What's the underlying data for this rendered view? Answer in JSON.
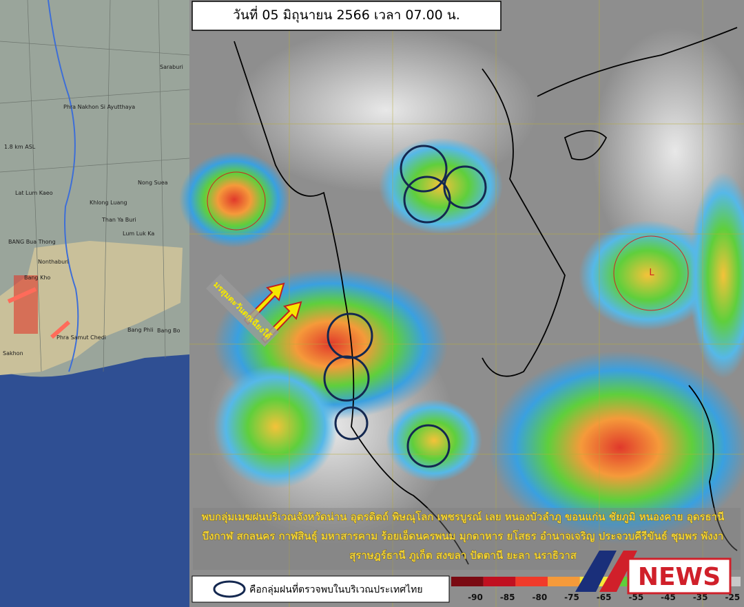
{
  "header": {
    "title": "วันที่ 05 มิถุนายน 2566 เวลา 07.00 น."
  },
  "radar_map": {
    "altitude": "1.8 km ASL",
    "places": [
      "Saraburi",
      "Phra Nakhon Si Ayutthaya",
      "Nong Suea",
      "Khlong Luang",
      "Lat Lum Kaeo",
      "Than Ya Buri",
      "Lum Luk Ka",
      "BANG Bua Thong",
      "Nonthaburi",
      "Bang Kho",
      "Bang Phli",
      "Bang Bo",
      "Phra Samut Chedi",
      "Sakhon"
    ]
  },
  "satellite": {
    "monsoon_label": "มรสุมตะวันตกเฉียงใต้",
    "low_label": "L"
  },
  "caption": {
    "lines": [
      "พบกลุ่มเมฆฝนบริเวณจังหวัดน่าน อุตรดิตถ์ พิษณุโลก เพชรบูรณ์ เลย หนองบัวลำภู ขอนแก่น ชัยภูมิ หนองคาย อุดรธานี",
      "บึงกาฬ สกลนคร กาฬสินธุ์ มหาสารคาม ร้อยเอ็ดนครพนม มุกดาหาร ยโสธร อำนาจเจริญ ประจวบคีรีขันธ์ ชุมพร พังงา",
      "สุราษฎร์ธานี ภูเก็ต สงขลา ปัตตานี ยะลา นราธิวาส"
    ]
  },
  "legend": {
    "text": "คือกลุ่มฝนที่ตรวจพบในบริเวณประเทศไทย",
    "scale": [
      -90,
      -85,
      -80,
      -75,
      -65,
      -55,
      -45,
      -35,
      -25
    ]
  },
  "logo": {
    "text": "NEWS"
  }
}
